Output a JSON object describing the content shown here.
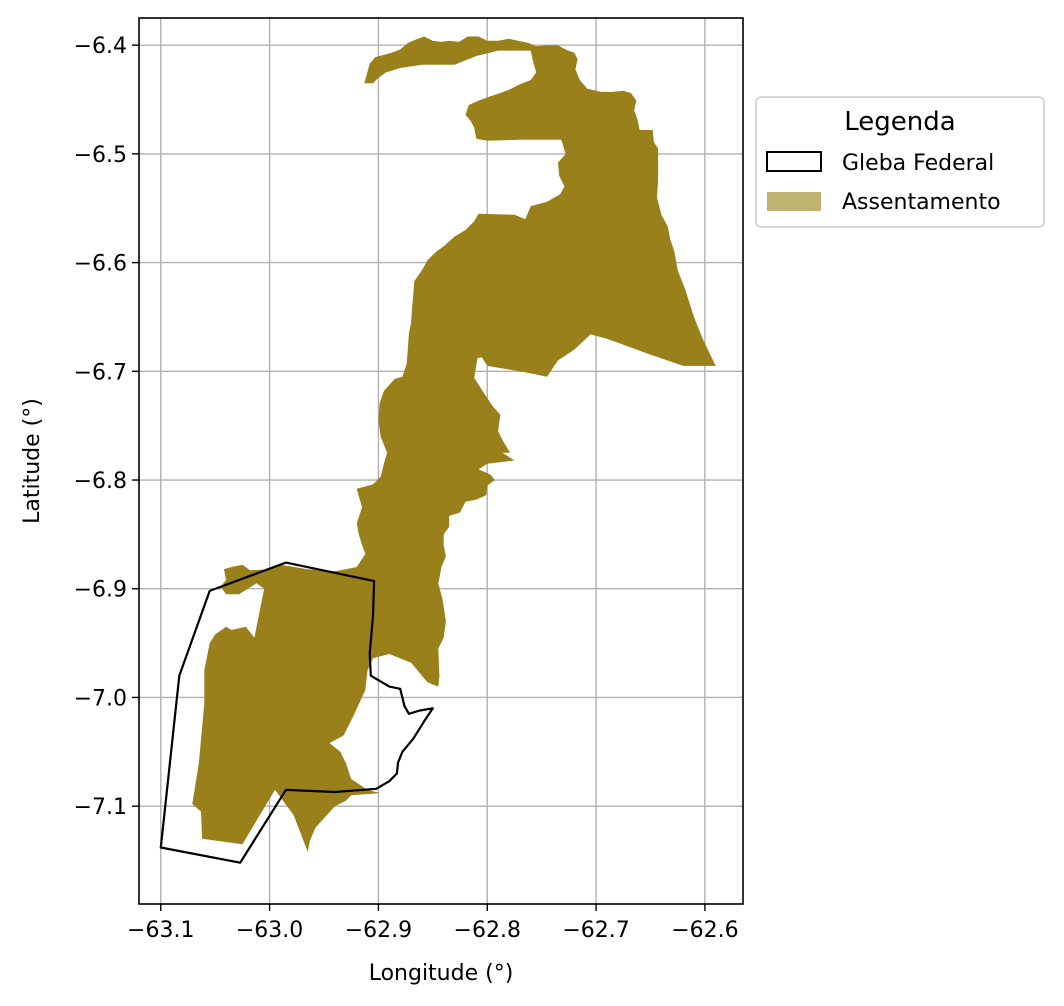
{
  "chart_data": {
    "type": "map",
    "xlabel": "Longitude (°)",
    "ylabel": "Latitude (°)",
    "xlim": [
      -63.12,
      -62.565
    ],
    "ylim": [
      -7.19,
      -6.375
    ],
    "xticks": [
      -63.1,
      -63.0,
      -62.9,
      -62.8,
      -62.7,
      -62.6
    ],
    "xtick_labels": [
      "−63.1",
      "−63.0",
      "−62.9",
      "−62.8",
      "−62.7",
      "−62.6"
    ],
    "yticks": [
      -6.4,
      -6.5,
      -6.6,
      -6.7,
      -6.8,
      -6.9,
      -7.0,
      -7.1
    ],
    "ytick_labels": [
      "−6.4",
      "−6.5",
      "−6.6",
      "−6.7",
      "−6.8",
      "−6.9",
      "−7.0",
      "−7.1"
    ],
    "grid": true,
    "legend_placement": "outside-right-top",
    "legend": {
      "title": "Legenda",
      "items": [
        {
          "key": "gleba",
          "label": "Gleba Federal",
          "style": "outline",
          "edge_color": "#000000",
          "fill": "none"
        },
        {
          "key": "assentamento",
          "label": "Assentamento",
          "style": "filled",
          "fill": "#bfb370"
        }
      ]
    },
    "series": [
      {
        "key": "assentamento",
        "kind": "polygon",
        "color": "#9a801a",
        "polygons": [
          [
            [
              -62.913,
              -6.435
            ],
            [
              -62.908,
              -6.417
            ],
            [
              -62.903,
              -6.411
            ],
            [
              -62.888,
              -6.407
            ],
            [
              -62.88,
              -6.404
            ],
            [
              -62.873,
              -6.398
            ],
            [
              -62.866,
              -6.395
            ],
            [
              -62.858,
              -6.392
            ],
            [
              -62.85,
              -6.396
            ],
            [
              -62.842,
              -6.397
            ],
            [
              -62.835,
              -6.396
            ],
            [
              -62.826,
              -6.397
            ],
            [
              -62.818,
              -6.392
            ],
            [
              -62.808,
              -6.392
            ],
            [
              -62.8,
              -6.396
            ],
            [
              -62.79,
              -6.396
            ],
            [
              -62.78,
              -6.394
            ],
            [
              -62.772,
              -6.396
            ],
            [
              -62.762,
              -6.398
            ],
            [
              -62.755,
              -6.401
            ],
            [
              -62.745,
              -6.4
            ],
            [
              -62.735,
              -6.4
            ],
            [
              -62.728,
              -6.404
            ],
            [
              -62.72,
              -6.407
            ],
            [
              -62.717,
              -6.413
            ],
            [
              -62.719,
              -6.422
            ],
            [
              -62.715,
              -6.432
            ],
            [
              -62.708,
              -6.44
            ],
            [
              -62.695,
              -6.443
            ],
            [
              -62.685,
              -6.443
            ],
            [
              -62.675,
              -6.442
            ],
            [
              -62.668,
              -6.444
            ],
            [
              -62.663,
              -6.451
            ],
            [
              -62.665,
              -6.46
            ],
            [
              -62.662,
              -6.468
            ],
            [
              -62.66,
              -6.478
            ],
            [
              -62.648,
              -6.478
            ],
            [
              -62.647,
              -6.489
            ],
            [
              -62.643,
              -6.495
            ],
            [
              -62.643,
              -6.51
            ],
            [
              -62.643,
              -6.525
            ],
            [
              -62.644,
              -6.54
            ],
            [
              -62.64,
              -6.556
            ],
            [
              -62.634,
              -6.567
            ],
            [
              -62.632,
              -6.578
            ],
            [
              -62.628,
              -6.59
            ],
            [
              -62.625,
              -6.607
            ],
            [
              -62.618,
              -6.625
            ],
            [
              -62.61,
              -6.65
            ],
            [
              -62.602,
              -6.67
            ],
            [
              -62.595,
              -6.685
            ],
            [
              -62.59,
              -6.695
            ],
            [
              -62.62,
              -6.695
            ],
            [
              -62.655,
              -6.683
            ],
            [
              -62.69,
              -6.67
            ],
            [
              -62.705,
              -6.666
            ],
            [
              -62.72,
              -6.68
            ],
            [
              -62.735,
              -6.69
            ],
            [
              -62.745,
              -6.705
            ],
            [
              -62.77,
              -6.7
            ],
            [
              -62.8,
              -6.695
            ],
            [
              -62.805,
              -6.687
            ],
            [
              -62.809,
              -6.688
            ],
            [
              -62.812,
              -6.706
            ],
            [
              -62.803,
              -6.72
            ],
            [
              -62.795,
              -6.732
            ],
            [
              -62.788,
              -6.74
            ],
            [
              -62.79,
              -6.755
            ],
            [
              -62.785,
              -6.765
            ],
            [
              -62.779,
              -6.775
            ],
            [
              -62.786,
              -6.775
            ],
            [
              -62.775,
              -6.782
            ],
            [
              -62.8,
              -6.785
            ],
            [
              -62.808,
              -6.79
            ],
            [
              -62.797,
              -6.795
            ],
            [
              -62.793,
              -6.8
            ],
            [
              -62.8,
              -6.805
            ],
            [
              -62.801,
              -6.814
            ],
            [
              -62.81,
              -6.818
            ],
            [
              -62.82,
              -6.82
            ],
            [
              -62.825,
              -6.83
            ],
            [
              -62.835,
              -6.833
            ],
            [
              -62.835,
              -6.843
            ],
            [
              -62.84,
              -6.85
            ],
            [
              -62.84,
              -6.86
            ],
            [
              -62.838,
              -6.87
            ],
            [
              -62.842,
              -6.88
            ],
            [
              -62.845,
              -6.895
            ],
            [
              -62.841,
              -6.91
            ],
            [
              -62.838,
              -6.93
            ],
            [
              -62.84,
              -6.945
            ],
            [
              -62.845,
              -6.955
            ],
            [
              -62.844,
              -6.98
            ],
            [
              -62.845,
              -6.99
            ],
            [
              -62.855,
              -6.986
            ],
            [
              -62.87,
              -6.968
            ],
            [
              -62.89,
              -6.96
            ],
            [
              -62.905,
              -6.964
            ],
            [
              -62.91,
              -6.975
            ],
            [
              -62.912,
              -6.993
            ],
            [
              -62.922,
              -7.015
            ],
            [
              -62.932,
              -7.035
            ],
            [
              -62.945,
              -7.042
            ],
            [
              -62.935,
              -7.05
            ],
            [
              -62.93,
              -7.06
            ],
            [
              -62.925,
              -7.075
            ],
            [
              -62.91,
              -7.085
            ],
            [
              -62.898,
              -7.088
            ],
            [
              -62.925,
              -7.09
            ],
            [
              -62.93,
              -7.095
            ],
            [
              -62.94,
              -7.1
            ],
            [
              -62.958,
              -7.12
            ],
            [
              -62.963,
              -7.132
            ],
            [
              -62.965,
              -7.142
            ],
            [
              -62.978,
              -7.108
            ],
            [
              -62.995,
              -7.085
            ],
            [
              -63.025,
              -7.135
            ],
            [
              -63.062,
              -7.13
            ],
            [
              -63.063,
              -7.105
            ],
            [
              -63.071,
              -7.098
            ],
            [
              -63.065,
              -7.06
            ],
            [
              -63.06,
              -7.005
            ],
            [
              -63.06,
              -6.975
            ],
            [
              -63.055,
              -6.95
            ],
            [
              -63.05,
              -6.942
            ],
            [
              -63.04,
              -6.935
            ],
            [
              -63.035,
              -6.938
            ],
            [
              -63.022,
              -6.935
            ],
            [
              -63.014,
              -6.945
            ],
            [
              -63.01,
              -6.925
            ],
            [
              -63.005,
              -6.9
            ],
            [
              -63.012,
              -6.895
            ],
            [
              -63.028,
              -6.905
            ],
            [
              -63.04,
              -6.905
            ],
            [
              -63.045,
              -6.898
            ],
            [
              -63.04,
              -6.892
            ],
            [
              -63.042,
              -6.882
            ],
            [
              -63.035,
              -6.88
            ],
            [
              -63.025,
              -6.878
            ],
            [
              -63.018,
              -6.883
            ],
            [
              -63.0,
              -6.882
            ],
            [
              -62.99,
              -6.878
            ],
            [
              -62.965,
              -6.882
            ],
            [
              -62.94,
              -6.884
            ],
            [
              -62.93,
              -6.882
            ],
            [
              -62.92,
              -6.88
            ],
            [
              -62.912,
              -6.868
            ],
            [
              -62.915,
              -6.86
            ],
            [
              -62.918,
              -6.85
            ],
            [
              -62.92,
              -6.84
            ],
            [
              -62.915,
              -6.825
            ],
            [
              -62.918,
              -6.815
            ],
            [
              -62.92,
              -6.808
            ],
            [
              -62.905,
              -6.804
            ],
            [
              -62.898,
              -6.797
            ],
            [
              -62.895,
              -6.785
            ],
            [
              -62.892,
              -6.775
            ],
            [
              -62.898,
              -6.76
            ],
            [
              -62.9,
              -6.745
            ],
            [
              -62.899,
              -6.73
            ],
            [
              -62.895,
              -6.718
            ],
            [
              -62.885,
              -6.707
            ],
            [
              -62.878,
              -6.705
            ],
            [
              -62.874,
              -6.693
            ],
            [
              -62.873,
              -6.68
            ],
            [
              -62.872,
              -6.665
            ],
            [
              -62.87,
              -6.655
            ],
            [
              -62.869,
              -6.64
            ],
            [
              -62.868,
              -6.63
            ],
            [
              -62.867,
              -6.617
            ],
            [
              -62.86,
              -6.607
            ],
            [
              -62.855,
              -6.598
            ],
            [
              -62.847,
              -6.59
            ],
            [
              -62.84,
              -6.585
            ],
            [
              -62.83,
              -6.576
            ],
            [
              -62.82,
              -6.57
            ],
            [
              -62.812,
              -6.562
            ],
            [
              -62.808,
              -6.555
            ],
            [
              -62.775,
              -6.556
            ],
            [
              -62.765,
              -6.56
            ],
            [
              -62.76,
              -6.548
            ],
            [
              -62.745,
              -6.544
            ],
            [
              -62.733,
              -6.537
            ],
            [
              -62.729,
              -6.53
            ],
            [
              -62.734,
              -6.52
            ],
            [
              -62.735,
              -6.508
            ],
            [
              -62.728,
              -6.5
            ],
            [
              -62.732,
              -6.487
            ],
            [
              -62.75,
              -6.487
            ],
            [
              -62.77,
              -6.487
            ],
            [
              -62.8,
              -6.488
            ],
            [
              -62.81,
              -6.486
            ],
            [
              -62.812,
              -6.476
            ],
            [
              -62.815,
              -6.47
            ],
            [
              -62.82,
              -6.464
            ],
            [
              -62.817,
              -6.455
            ],
            [
              -62.808,
              -6.451
            ],
            [
              -62.797,
              -6.447
            ],
            [
              -62.788,
              -6.444
            ],
            [
              -62.78,
              -6.441
            ],
            [
              -62.77,
              -6.436
            ],
            [
              -62.76,
              -6.432
            ],
            [
              -62.755,
              -6.425
            ],
            [
              -62.758,
              -6.415
            ],
            [
              -62.76,
              -6.405
            ],
            [
              -62.77,
              -6.405
            ],
            [
              -62.79,
              -6.405
            ],
            [
              -62.81,
              -6.41
            ],
            [
              -62.83,
              -6.418
            ],
            [
              -62.86,
              -6.418
            ],
            [
              -62.88,
              -6.421
            ],
            [
              -62.893,
              -6.425
            ],
            [
              -62.9,
              -6.43
            ],
            [
              -62.905,
              -6.435
            ],
            [
              -62.913,
              -6.435
            ]
          ]
        ]
      },
      {
        "key": "gleba",
        "kind": "polygon-outline",
        "color": "#000000",
        "polygons": [
          [
            [
              -63.1,
              -7.138
            ],
            [
              -63.083,
              -6.98
            ],
            [
              -63.055,
              -6.902
            ],
            [
              -62.985,
              -6.876
            ],
            [
              -62.904,
              -6.893
            ],
            [
              -62.905,
              -6.925
            ],
            [
              -62.908,
              -6.96
            ],
            [
              -62.907,
              -6.98
            ],
            [
              -62.89,
              -6.99
            ],
            [
              -62.88,
              -6.992
            ],
            [
              -62.876,
              -7.008
            ],
            [
              -62.872,
              -7.015
            ],
            [
              -62.862,
              -7.012
            ],
            [
              -62.85,
              -7.01
            ],
            [
              -62.858,
              -7.022
            ],
            [
              -62.868,
              -7.038
            ],
            [
              -62.878,
              -7.05
            ],
            [
              -62.882,
              -7.06
            ],
            [
              -62.883,
              -7.07
            ],
            [
              -62.89,
              -7.077
            ],
            [
              -62.902,
              -7.084
            ],
            [
              -62.94,
              -7.087
            ],
            [
              -62.985,
              -7.085
            ],
            [
              -63.027,
              -7.152
            ],
            [
              -63.1,
              -7.138
            ]
          ]
        ]
      }
    ]
  }
}
